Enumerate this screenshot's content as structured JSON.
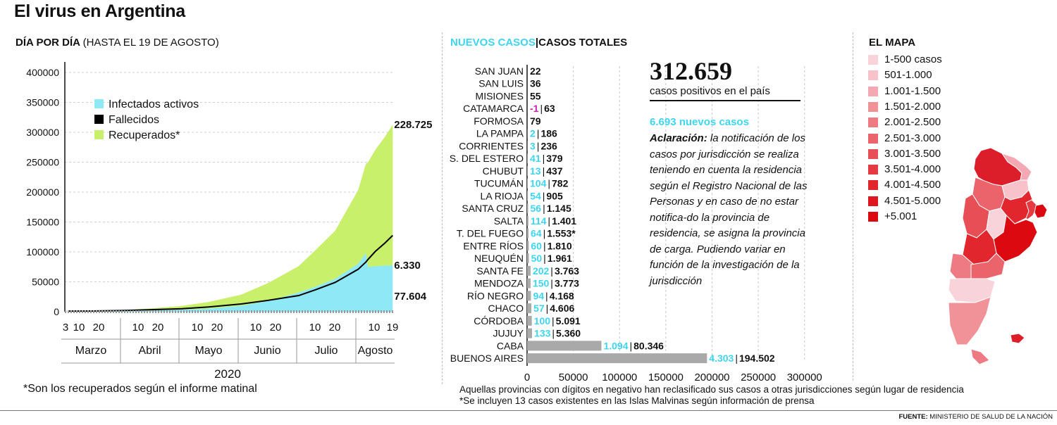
{
  "title": "El virus en Argentina",
  "left_section": {
    "title_bold": "DÍA POR DÍA",
    "title_light": "(HASTA EL 19 DE AGOSTO)"
  },
  "mid_section": {
    "title_cyan": "NUEVOS CASOS",
    "separator": "|",
    "title_dark": "CASOS TOTALES"
  },
  "map_section": {
    "title": "EL MAPA"
  },
  "chart_data": [
    {
      "type": "area",
      "title": "DÍA POR DÍA",
      "subtitle": "(HASTA EL 19 DE AGOSTO)",
      "xlabel": "2020",
      "ylim": [
        0,
        400000
      ],
      "yticks": [
        0,
        50000,
        100000,
        150000,
        200000,
        250000,
        300000,
        350000,
        400000
      ],
      "xtick_labels": [
        "3",
        "10",
        "20",
        "10",
        "20",
        "10",
        "20",
        "10",
        "20",
        "10",
        "20",
        "10",
        "19"
      ],
      "months": [
        "Marzo",
        "Abril",
        "Mayo",
        "Junio",
        "Julio",
        "Agosto"
      ],
      "legend": {
        "position": "top-left",
        "entries": [
          "Infectados activos",
          "Fallecidos",
          "Recuperados*"
        ]
      },
      "x": [
        "03-03",
        "03-15",
        "04-01",
        "04-15",
        "05-01",
        "05-15",
        "06-01",
        "06-15",
        "07-01",
        "07-10",
        "07-20",
        "08-01",
        "08-05",
        "08-06",
        "08-10",
        "08-15",
        "08-19"
      ],
      "series": [
        {
          "name": "Infectados activos",
          "color": "#8ee8f5",
          "values": [
            0,
            500,
            1500,
            2500,
            3500,
            5000,
            10000,
            18000,
            32000,
            42000,
            55000,
            80000,
            98000,
            75000,
            76000,
            77000,
            77604
          ]
        },
        {
          "name": "Fallecidos",
          "color": "#000000",
          "values": [
            0,
            10,
            50,
            120,
            200,
            350,
            600,
            900,
            1300,
            1800,
            2400,
            3500,
            4100,
            4300,
            5000,
            5700,
            6330
          ]
        },
        {
          "name": "Recuperados*",
          "color": "#c8f06a",
          "values": [
            0,
            200,
            1000,
            3000,
            6000,
            11000,
            18000,
            29000,
            43000,
            60000,
            78000,
            120000,
            145000,
            170000,
            190000,
            210000,
            228725
          ]
        }
      ],
      "end_labels": {
        "recuperados": "228.725",
        "fallecidos": "6.330",
        "activos": "77.604"
      }
    },
    {
      "type": "bar",
      "title": "NUEVOS CASOS | CASOS TOTALES",
      "orientation": "horizontal",
      "xlim": [
        0,
        320000
      ],
      "xticks": [
        0,
        50000,
        100000,
        150000,
        200000,
        250000,
        300000
      ],
      "categories": [
        "SAN JUAN",
        "SAN LUIS",
        "MISIONES",
        "CATAMARCA",
        "FORMOSA",
        "LA PAMPA",
        "CORRIENTES",
        "S. DEL ESTERO",
        "CHUBUT",
        "TUCUMÁN",
        "LA RIOJA",
        "SANTA CRUZ",
        "SALTA",
        "T. DEL FUEGO",
        "ENTRE RÍOS",
        "NEUQUÉN",
        "SANTA FE",
        "MENDOZA",
        "RÍO NEGRO",
        "CHACO",
        "CÓRDOBA",
        "JUJUY",
        "CABA",
        "BUENOS AIRES"
      ],
      "series": [
        {
          "name": "CASOS TOTALES",
          "values": [
            22,
            36,
            55,
            63,
            79,
            186,
            236,
            379,
            437,
            782,
            905,
            1145,
            1401,
            1553,
            1810,
            1961,
            3763,
            3773,
            4168,
            4606,
            5091,
            5360,
            80346,
            194502
          ]
        },
        {
          "name": "NUEVOS CASOS",
          "values": [
            null,
            null,
            null,
            -1,
            null,
            2,
            3,
            41,
            13,
            104,
            54,
            56,
            114,
            64,
            60,
            50,
            202,
            150,
            94,
            57,
            100,
            133,
            1094,
            4303
          ]
        }
      ],
      "value_labels": [
        {
          "nuevos": "",
          "total": "22"
        },
        {
          "nuevos": "",
          "total": "36"
        },
        {
          "nuevos": "",
          "total": "55"
        },
        {
          "nuevos": "-1",
          "total": "63"
        },
        {
          "nuevos": "",
          "total": "79"
        },
        {
          "nuevos": "2",
          "total": "186"
        },
        {
          "nuevos": "3",
          "total": "236"
        },
        {
          "nuevos": "41",
          "total": "379"
        },
        {
          "nuevos": "13",
          "total": "437"
        },
        {
          "nuevos": "104",
          "total": "782"
        },
        {
          "nuevos": "54",
          "total": "905"
        },
        {
          "nuevos": "56",
          "total": "1.145"
        },
        {
          "nuevos": "114",
          "total": "1.401"
        },
        {
          "nuevos": "64",
          "total": "1.553*"
        },
        {
          "nuevos": "60",
          "total": "1.810"
        },
        {
          "nuevos": "50",
          "total": "1.961"
        },
        {
          "nuevos": "202",
          "total": "3.763"
        },
        {
          "nuevos": "150",
          "total": "3.773"
        },
        {
          "nuevos": "94",
          "total": "4.168"
        },
        {
          "nuevos": "57",
          "total": "4.606"
        },
        {
          "nuevos": "100",
          "total": "5.091"
        },
        {
          "nuevos": "133",
          "total": "5.360"
        },
        {
          "nuevos": "1.094",
          "total": "80.346"
        },
        {
          "nuevos": "4.303",
          "total": "194.502"
        }
      ]
    }
  ],
  "summary": {
    "total": "312.659",
    "total_caption": "casos positivos en el país",
    "new_cases": "6.693 nuevos casos",
    "note_label": "Aclaración:",
    "note_text": "la notificación de los casos por jurisdicción se realiza teniendo en cuenta la residencia según el Registro Nacional de las Personas y en caso de no estar notifica-do la provincia de residencia, se asigna la provincia de carga. Pudiendo variar en función de la investigación de la jurisdicción"
  },
  "map_legend": [
    {
      "label": "1-500 casos",
      "color": "#f9d3da"
    },
    {
      "label": "501-1.000",
      "color": "#f7c2ca"
    },
    {
      "label": "1.001-1.500",
      "color": "#f4a8b1"
    },
    {
      "label": "1.501-2.000",
      "color": "#f19299"
    },
    {
      "label": "2.001-2.500",
      "color": "#ee7b83"
    },
    {
      "label": "2.501-3.000",
      "color": "#eb646c"
    },
    {
      "label": "3.001-3.500",
      "color": "#e84e56"
    },
    {
      "label": "3.501-4.000",
      "color": "#e53a42"
    },
    {
      "label": "4.001-4.500",
      "color": "#e2262e"
    },
    {
      "label": "4.501-5.000",
      "color": "#df1620"
    },
    {
      "label": "+5.001",
      "color": "#dc0a10"
    }
  ],
  "footnotes": {
    "recuperados": "*Son los recuperados según el informe matinal",
    "negativos": "Aquellas provincias con dígitos en negativo han reclasificado sus casos a otras jurisdicciones según lugar de residencia",
    "malvinas": "*Se incluyen 13 casos existentes en las Islas Malvinas según información de prensa",
    "source_label": "FUENTE:",
    "source_text": "MINISTERIO DE SALUD DE LA NACIÓN"
  },
  "colors": {
    "cyan": "#3dd6ee",
    "activos": "#8ee8f5",
    "recuperados": "#c8f06a",
    "bar": "#a9a9a9",
    "negative": "#d11fb3"
  }
}
